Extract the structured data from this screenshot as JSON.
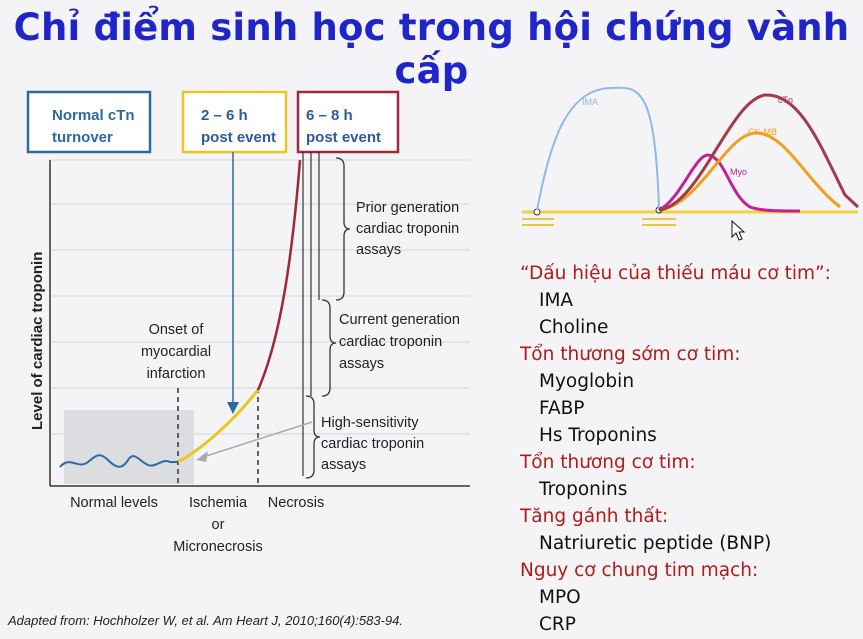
{
  "slide": {
    "title": "Chỉ điểm sinh học trong hội chứng vành cấp",
    "citation": "Adapted from: Hochholzer W, et al. Am Heart  J, 2010;160(4):583-94."
  },
  "left_figure": {
    "boxes": [
      {
        "line1": "Normal cTn",
        "line2": "turnover",
        "color": "#2d6aa3"
      },
      {
        "line1": "2 – 6 h",
        "line2": "post event",
        "color": "#e8c820"
      },
      {
        "line1": "6 – 8 h",
        "line2": "post event",
        "color": "#a3253a"
      }
    ],
    "y_axis_label": "Level of cardiac troponin",
    "onset_label": [
      "Onset of",
      "myocardial",
      "infarction"
    ],
    "brackets": [
      {
        "lines": [
          "Prior generation",
          "cardiac troponin",
          "assays"
        ]
      },
      {
        "lines": [
          "Current generation",
          "cardiac troponin",
          "assays"
        ]
      },
      {
        "lines": [
          "High-sensitivity",
          "cardiac troponin",
          "assays"
        ]
      }
    ],
    "x_labels": [
      {
        "lines": [
          "Normal levels"
        ]
      },
      {
        "lines": [
          "Ischemia",
          "or",
          "Micronecrosis"
        ]
      },
      {
        "lines": [
          "Necrosis"
        ]
      }
    ]
  },
  "curve_figure": {
    "labels": {
      "ima": "IMA",
      "ctn": "cTn",
      "ckmb": "CK-MB",
      "myo": "Myo"
    },
    "colors": {
      "ima": "#8fb9e6",
      "ctn": "#a23a4a",
      "ckmb": "#f0a020",
      "myo": "#c0209a",
      "baseline": "#f0d23a"
    }
  },
  "marker_list": [
    {
      "heading": "“Dấu hiệu của thiếu máu cơ tim”:",
      "items": [
        "IMA",
        "Choline"
      ]
    },
    {
      "heading": "Tổn thương sớm cơ tim:",
      "items": [
        "Myoglobin",
        "FABP",
        "Hs Troponins"
      ]
    },
    {
      "heading": "Tổn thương cơ tim:",
      "items": [
        "Troponins"
      ]
    },
    {
      "heading": "Tăng gánh thất:",
      "items": [
        "Natriuretic peptide (BNP)"
      ]
    },
    {
      "heading": "Nguy cơ chung tim mạch:",
      "items": [
        "MPO",
        "CRP"
      ]
    }
  ]
}
